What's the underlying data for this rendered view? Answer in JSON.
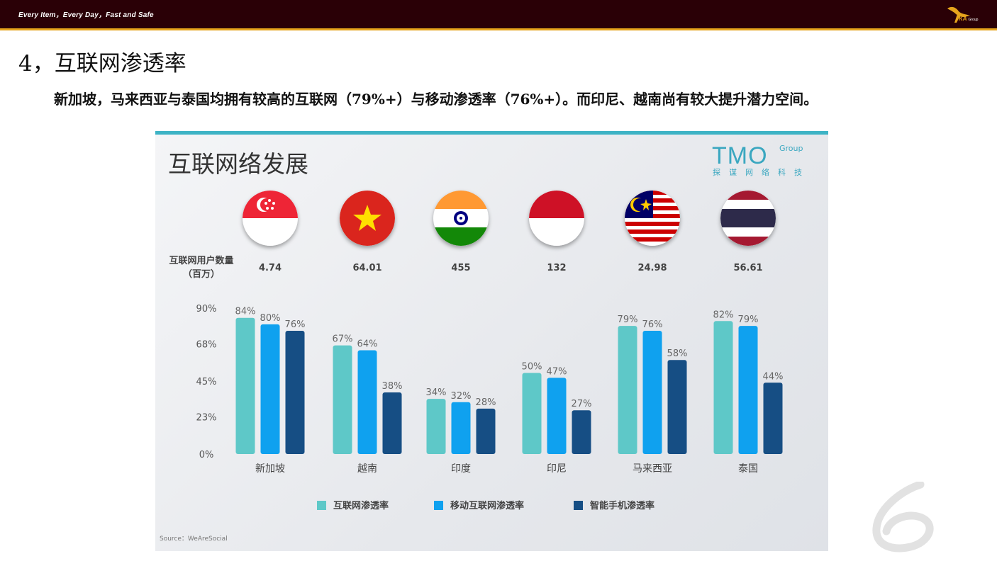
{
  "header": {
    "tagline": "Every Item，Every Day，Fast and Safe",
    "logo_text": "KA",
    "logo_sub": "Group"
  },
  "heading": "4，互联网渗透率",
  "subtitle": "新加坡，马来西亚与泰国均拥有较高的互联网（79%+）与移动渗透率（76%+）。而印尼、越南尚有较大提升潜力空间。",
  "panel": {
    "title": "互联网络发展",
    "brand": "TMO",
    "brand_group": "Group",
    "brand_sub": "探谋网络科技",
    "users_label_line1": "互联网用户数量",
    "users_label_line2": "（百万）",
    "source": "Source：WeAreSocial"
  },
  "page_number_icon": "decorative-six",
  "colors": {
    "internet": "#5ec8c8",
    "mobile": "#0fa1ef",
    "smartphone": "#164e84"
  },
  "chart_data": {
    "type": "bar",
    "categories": [
      "新加坡",
      "越南",
      "印度",
      "印尼",
      "马来西亚",
      "泰国"
    ],
    "users_millions": [
      "4.74",
      "64.01",
      "455",
      "132",
      "24.98",
      "56.61"
    ],
    "series": [
      {
        "name": "互联网渗透率",
        "values": [
          84,
          67,
          34,
          50,
          79,
          82
        ],
        "labels": [
          "84%",
          "67%",
          "34%",
          "50%",
          "79%",
          "82%"
        ]
      },
      {
        "name": "移动互联网渗透率",
        "values": [
          80,
          64,
          32,
          47,
          76,
          79
        ],
        "labels": [
          "80%",
          "64%",
          "32%",
          "47%",
          "76%",
          "79%"
        ]
      },
      {
        "name": "智能手机渗透率",
        "values": [
          76,
          38,
          28,
          27,
          58,
          44
        ],
        "labels": [
          "76%",
          "38%",
          "28%",
          "27%",
          "58%",
          "44%"
        ]
      }
    ],
    "ylim": [
      0,
      90
    ],
    "yticks": [
      0,
      23,
      45,
      68,
      90
    ],
    "ytick_labels": [
      "0%",
      "23%",
      "45%",
      "68%",
      "90%"
    ],
    "legend": "bottom",
    "grid": false
  }
}
